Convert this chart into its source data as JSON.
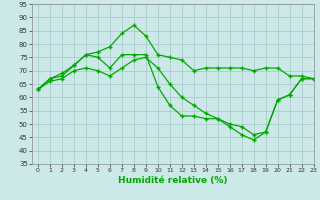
{
  "title": "",
  "xlabel": "Humidité relative (%)",
  "ylabel": "",
  "bg_color": "#cce8e8",
  "grid_color": "#aacccc",
  "line_color": "#00aa00",
  "marker": "+",
  "xlim": [
    -0.5,
    23
  ],
  "ylim": [
    35,
    95
  ],
  "yticks": [
    35,
    40,
    45,
    50,
    55,
    60,
    65,
    70,
    75,
    80,
    85,
    90,
    95
  ],
  "xticks": [
    0,
    1,
    2,
    3,
    4,
    5,
    6,
    7,
    8,
    9,
    10,
    11,
    12,
    13,
    14,
    15,
    16,
    17,
    18,
    19,
    20,
    21,
    22,
    23
  ],
  "line1_x": [
    0,
    1,
    2,
    3,
    4,
    5,
    6,
    7,
    8,
    9,
    10,
    11,
    12,
    13,
    14,
    15,
    16,
    17,
    18,
    19,
    20,
    21,
    22,
    23
  ],
  "line1_y": [
    63,
    67,
    69,
    72,
    76,
    77,
    79,
    84,
    87,
    83,
    76,
    75,
    74,
    70,
    71,
    71,
    71,
    71,
    70,
    71,
    71,
    68,
    68,
    67
  ],
  "line2_x": [
    0,
    1,
    2,
    3,
    4,
    5,
    6,
    7,
    8,
    9,
    10,
    11,
    12,
    13,
    14,
    15,
    16,
    17,
    18,
    19,
    20,
    21,
    22,
    23
  ],
  "line2_y": [
    63,
    67,
    68,
    72,
    76,
    75,
    71,
    76,
    76,
    76,
    64,
    57,
    53,
    53,
    52,
    52,
    49,
    46,
    44,
    47,
    59,
    61,
    67,
    67
  ],
  "line3_x": [
    0,
    1,
    2,
    3,
    4,
    5,
    6,
    7,
    8,
    9,
    10,
    11,
    12,
    13,
    14,
    15,
    16,
    17,
    18,
    19,
    20,
    21,
    22,
    23
  ],
  "line3_y": [
    63,
    66,
    67,
    70,
    71,
    70,
    68,
    71,
    74,
    75,
    71,
    65,
    60,
    57,
    54,
    52,
    50,
    49,
    46,
    47,
    59,
    61,
    67,
    67
  ]
}
